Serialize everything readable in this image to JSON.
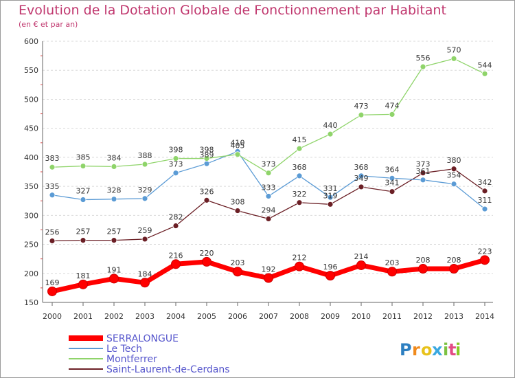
{
  "chart_data": {
    "type": "line",
    "title": "Evolution de la Dotation Globale de Fonctionnement par Habitant",
    "subtitle": "(en € et par an)",
    "x": [
      "2000",
      "2001",
      "2002",
      "2003",
      "2004",
      "2005",
      "2006",
      "2007",
      "2008",
      "2009",
      "2010",
      "2011",
      "2012",
      "2013",
      "2014"
    ],
    "ylim": [
      150,
      600
    ],
    "yticks": [
      150,
      200,
      250,
      300,
      350,
      400,
      450,
      500,
      550,
      600
    ],
    "grid": "horizontal dashed",
    "legend": "bottom-left",
    "series": [
      {
        "name": "SERRALONGUE",
        "color": "#ff0000",
        "values": [
          169,
          181,
          191,
          184,
          216,
          220,
          203,
          192,
          212,
          196,
          214,
          203,
          208,
          208,
          223
        ]
      },
      {
        "name": "Le Tech",
        "color": "#5b9bd5",
        "values": [
          335,
          327,
          328,
          329,
          373,
          389,
          410,
          333,
          368,
          331,
          368,
          364,
          361,
          354,
          311
        ]
      },
      {
        "name": "Montferrer",
        "color": "#8fd46a",
        "values": [
          383,
          385,
          384,
          388,
          398,
          398,
          405,
          373,
          415,
          440,
          473,
          474,
          556,
          570,
          544
        ]
      },
      {
        "name": "Saint-Laurent-de-Cerdans",
        "color": "#6b1f25",
        "values": [
          256,
          257,
          257,
          259,
          282,
          326,
          308,
          294,
          322,
          319,
          349,
          341,
          373,
          380,
          342
        ]
      }
    ]
  },
  "labels": {
    "SERRALONGUE": [
      169,
      181,
      191,
      184,
      216,
      220,
      203,
      192,
      212,
      196,
      214,
      203,
      208,
      208,
      223
    ],
    "Le Tech": [
      335,
      327,
      328,
      329,
      373,
      389,
      410,
      333,
      368,
      331,
      368,
      364,
      361,
      354,
      311
    ],
    "Montferrer": [
      383,
      385,
      384,
      388,
      398,
      398,
      405,
      373,
      415,
      440,
      473,
      474,
      556,
      570,
      544
    ],
    "Saint-Laurent-de-Cerdans": [
      256,
      257,
      257,
      259,
      282,
      326,
      308,
      294,
      322,
      319,
      349,
      341,
      373,
      380,
      342
    ]
  },
  "brand": {
    "text": "Proxiti",
    "letters": [
      "P",
      "r",
      "o",
      "x",
      "i",
      "t",
      "i"
    ],
    "colors": [
      "#2d7fc1",
      "#f08a1c",
      "#e8c21a",
      "#3aa8e0",
      "#7cc242",
      "#e34a85",
      "#8ac926"
    ]
  }
}
